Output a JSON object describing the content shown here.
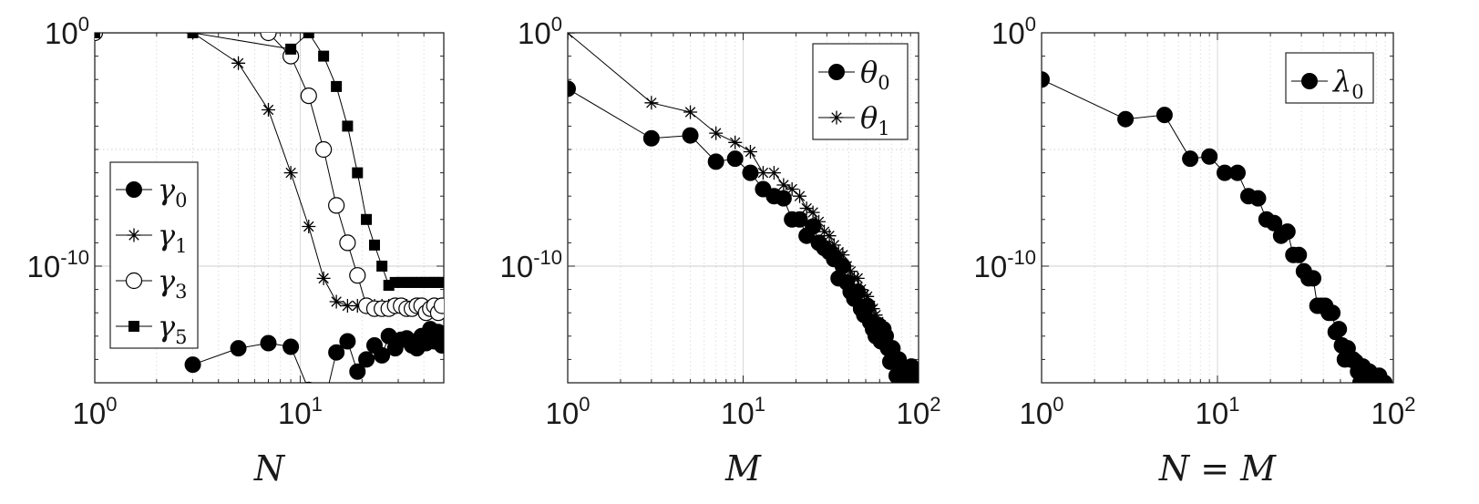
{
  "chart_data": [
    {
      "type": "line",
      "xlabel": "N",
      "ylabel": "",
      "xscale": "log",
      "yscale": "log",
      "xlim": [
        1,
        50
      ],
      "ylim": [
        1e-15,
        1
      ],
      "xticks": [
        1,
        10
      ],
      "xtick_labels": [
        {
          "base": "10",
          "exp": "0"
        },
        {
          "base": "10",
          "exp": "1"
        }
      ],
      "yticks": [
        1,
        1e-10
      ],
      "ytick_labels": [
        {
          "base": "10",
          "exp": "0"
        },
        {
          "base": "10",
          "exp": "-10"
        }
      ],
      "grid": true,
      "legend": "left",
      "series": [
        {
          "name": {
            "base": "γ",
            "sub": "0"
          },
          "marker": "filled-circle",
          "x": [
            3,
            5,
            7,
            9,
            11,
            13,
            15,
            17,
            19,
            21,
            23,
            25,
            27,
            29,
            31,
            33,
            35,
            37,
            39,
            41,
            43,
            45,
            47,
            49
          ],
          "y": [
            6e-15,
            3e-14,
            5e-14,
            3.5e-14,
            5e-16,
            1e-16,
            2e-14,
            6e-14,
            3e-15,
            1e-14,
            4e-14,
            1.5e-14,
            1e-13,
            3e-14,
            7e-14,
            8e-14,
            4e-14,
            3e-14,
            1e-13,
            5e-14,
            2e-13,
            6e-14,
            1.5e-13,
            4e-14
          ]
        },
        {
          "name": {
            "base": "γ",
            "sub": "1"
          },
          "marker": "asterisk",
          "x": [
            1,
            3,
            5,
            7,
            9,
            11,
            13,
            15,
            17,
            19,
            21,
            23,
            25,
            27,
            29,
            31,
            33,
            35,
            37,
            39,
            41,
            43,
            45,
            47,
            49
          ],
          "y": [
            1,
            1,
            0.05,
            0.0005,
            1e-06,
            5e-09,
            3e-11,
            3e-12,
            2e-12,
            2e-12,
            2e-12,
            2e-12,
            2e-12,
            2e-12,
            2e-12,
            2e-12,
            2e-12,
            2e-12,
            2e-12,
            2e-12,
            2e-12,
            2e-12,
            2e-12,
            2e-12,
            2e-12
          ]
        },
        {
          "name": {
            "base": "γ",
            "sub": "3"
          },
          "marker": "open-circle",
          "x": [
            1,
            7,
            9,
            11,
            13,
            15,
            17,
            19,
            21,
            23,
            25,
            27,
            29,
            31,
            33,
            35,
            37,
            39,
            41,
            43,
            45,
            47,
            49
          ],
          "y": [
            1,
            1,
            0.1,
            0.002,
            1e-05,
            4e-08,
            1e-09,
            4e-11,
            2e-12,
            1.5e-12,
            1.5e-12,
            1.5e-12,
            2e-12,
            2e-12,
            1.5e-12,
            1.5e-12,
            2e-12,
            2e-12,
            1e-12,
            1.5e-12,
            2e-12,
            1e-12,
            2e-12
          ]
        },
        {
          "name": {
            "base": "γ",
            "sub": "5"
          },
          "marker": "filled-square",
          "x": [
            1,
            3,
            9,
            11,
            13,
            15,
            17,
            19,
            21,
            23,
            25,
            27,
            29,
            31,
            33,
            35,
            37,
            39,
            41,
            43,
            45,
            47,
            49
          ],
          "y": [
            1,
            1,
            0.2,
            1,
            0.1,
            0.005,
            0.0001,
            1e-06,
            1e-08,
            8e-10,
            1e-10,
            1.5e-11,
            2e-11,
            2e-11,
            2e-11,
            2e-11,
            2e-11,
            2e-11,
            2e-11,
            2e-11,
            2e-11,
            2e-11,
            2e-11
          ]
        }
      ]
    },
    {
      "type": "line",
      "xlabel": "M",
      "ylabel": "",
      "xscale": "log",
      "yscale": "log",
      "xlim": [
        1,
        100
      ],
      "ylim": [
        1e-15,
        1
      ],
      "xticks": [
        1,
        10,
        100
      ],
      "xtick_labels": [
        {
          "base": "10",
          "exp": "0"
        },
        {
          "base": "10",
          "exp": "1"
        },
        {
          "base": "10",
          "exp": "2"
        }
      ],
      "yticks": [
        1,
        1e-10
      ],
      "ytick_labels": [
        {
          "base": "10",
          "exp": "0"
        },
        {
          "base": "10",
          "exp": "-10"
        }
      ],
      "grid": true,
      "legend": "top-right",
      "series": [
        {
          "name": {
            "base": "θ",
            "sub": "0"
          },
          "marker": "filled-circle",
          "x": [
            1,
            3,
            5,
            7,
            9,
            11,
            13,
            15,
            17,
            19,
            21,
            23,
            25,
            27,
            29,
            31,
            33,
            35,
            37,
            39,
            41,
            43,
            45,
            47,
            49,
            51,
            53,
            55,
            57,
            59,
            61,
            63,
            65,
            67,
            69,
            71,
            73,
            75,
            77,
            79,
            81,
            83,
            85,
            87,
            89,
            91,
            93,
            95
          ],
          "y": [
            0.004,
            3e-05,
            4e-05,
            3e-06,
            4e-06,
            1e-06,
            2e-07,
            1e-07,
            8e-08,
            1e-08,
            1e-08,
            2e-09,
            5e-09,
            1e-09,
            6e-10,
            4e-10,
            2e-10,
            3e-11,
            1e-10,
            2e-11,
            8e-12,
            4e-12,
            8e-12,
            1.5e-12,
            8e-13,
            2e-12,
            4e-13,
            2e-13,
            1e-13,
            3e-13,
            6e-14,
            2e-13,
            1e-13,
            3e-14,
            8e-15,
            3e-14,
            1e-14,
            2e-15,
            1e-14,
            3e-15,
            5e-15,
            1e-15,
            3e-15,
            2e-15,
            1e-15,
            5e-15,
            2e-15,
            1e-15
          ]
        },
        {
          "name": {
            "base": "θ",
            "sub": "1"
          },
          "marker": "asterisk",
          "x": [
            1,
            3,
            5,
            7,
            9,
            11,
            13,
            15,
            17,
            19,
            21,
            23,
            25,
            27,
            29,
            31,
            33,
            35,
            37,
            39,
            41,
            43,
            45,
            47,
            49,
            51,
            53,
            55,
            57,
            59,
            61,
            63,
            65,
            67,
            69,
            71,
            73,
            75,
            77,
            79,
            81,
            83,
            85,
            87,
            89,
            91,
            93,
            95,
            97,
            99
          ],
          "y": [
            1,
            0.001,
            0.0004,
            5e-05,
            2e-05,
            8e-06,
            1e-06,
            1e-06,
            3e-07,
            2e-07,
            1e-07,
            3e-08,
            2e-08,
            8e-09,
            3e-09,
            2e-09,
            8e-10,
            4e-10,
            3e-10,
            1e-10,
            6e-11,
            3e-11,
            3e-11,
            1e-11,
            6e-12,
            5e-12,
            2e-12,
            1.5e-12,
            8e-13,
            4e-13,
            3e-13,
            2e-13,
            1e-13,
            6e-14,
            4e-14,
            3e-14,
            2e-14,
            1e-14,
            8e-15,
            6e-15,
            5e-15,
            3e-15,
            2e-15,
            2e-15,
            1.5e-15,
            1.5e-15,
            1e-15,
            1e-15,
            1e-15,
            1e-15
          ]
        }
      ]
    },
    {
      "type": "line",
      "xlabel": "N = M",
      "ylabel": "",
      "xscale": "log",
      "yscale": "log",
      "xlim": [
        1,
        100
      ],
      "ylim": [
        1e-15,
        1
      ],
      "xticks": [
        1,
        10,
        100
      ],
      "xtick_labels": [
        {
          "base": "10",
          "exp": "0"
        },
        {
          "base": "10",
          "exp": "1"
        },
        {
          "base": "10",
          "exp": "2"
        }
      ],
      "yticks": [
        1,
        1e-10
      ],
      "ytick_labels": [
        {
          "base": "10",
          "exp": "0"
        },
        {
          "base": "10",
          "exp": "-10"
        }
      ],
      "grid": true,
      "legend": "top-right",
      "series": [
        {
          "name": {
            "base": "λ",
            "sub": "0"
          },
          "marker": "filled-circle",
          "x": [
            1,
            3,
            5,
            7,
            9,
            11,
            13,
            15,
            17,
            19,
            21,
            23,
            25,
            27,
            29,
            31,
            33,
            35,
            37,
            39,
            41,
            43,
            45,
            47,
            49,
            51,
            53,
            55,
            57,
            59,
            61,
            63,
            65,
            67,
            69,
            71,
            73,
            75,
            77,
            79,
            81,
            83,
            85,
            87,
            89,
            91,
            93,
            95
          ],
          "y": [
            0.01,
            0.0002,
            0.0003,
            4e-06,
            5e-06,
            1e-06,
            1e-06,
            1e-07,
            8e-08,
            1e-08,
            7e-09,
            2e-09,
            3e-09,
            3e-10,
            3e-10,
            6e-11,
            3e-11,
            3e-11,
            2e-12,
            2e-12,
            2e-12,
            1e-12,
            1e-12,
            1.5e-13,
            2e-13,
            4e-14,
            1e-14,
            3e-14,
            1e-14,
            1e-14,
            8e-15,
            3e-15,
            1e-15,
            5e-15,
            3e-15,
            1e-16,
            3e-15,
            1e-15,
            2e-15,
            1e-15,
            5e-16,
            2e-15,
            6e-16,
            1e-15,
            1e-15,
            3e-16,
            5e-16,
            5e-16
          ]
        }
      ]
    }
  ]
}
